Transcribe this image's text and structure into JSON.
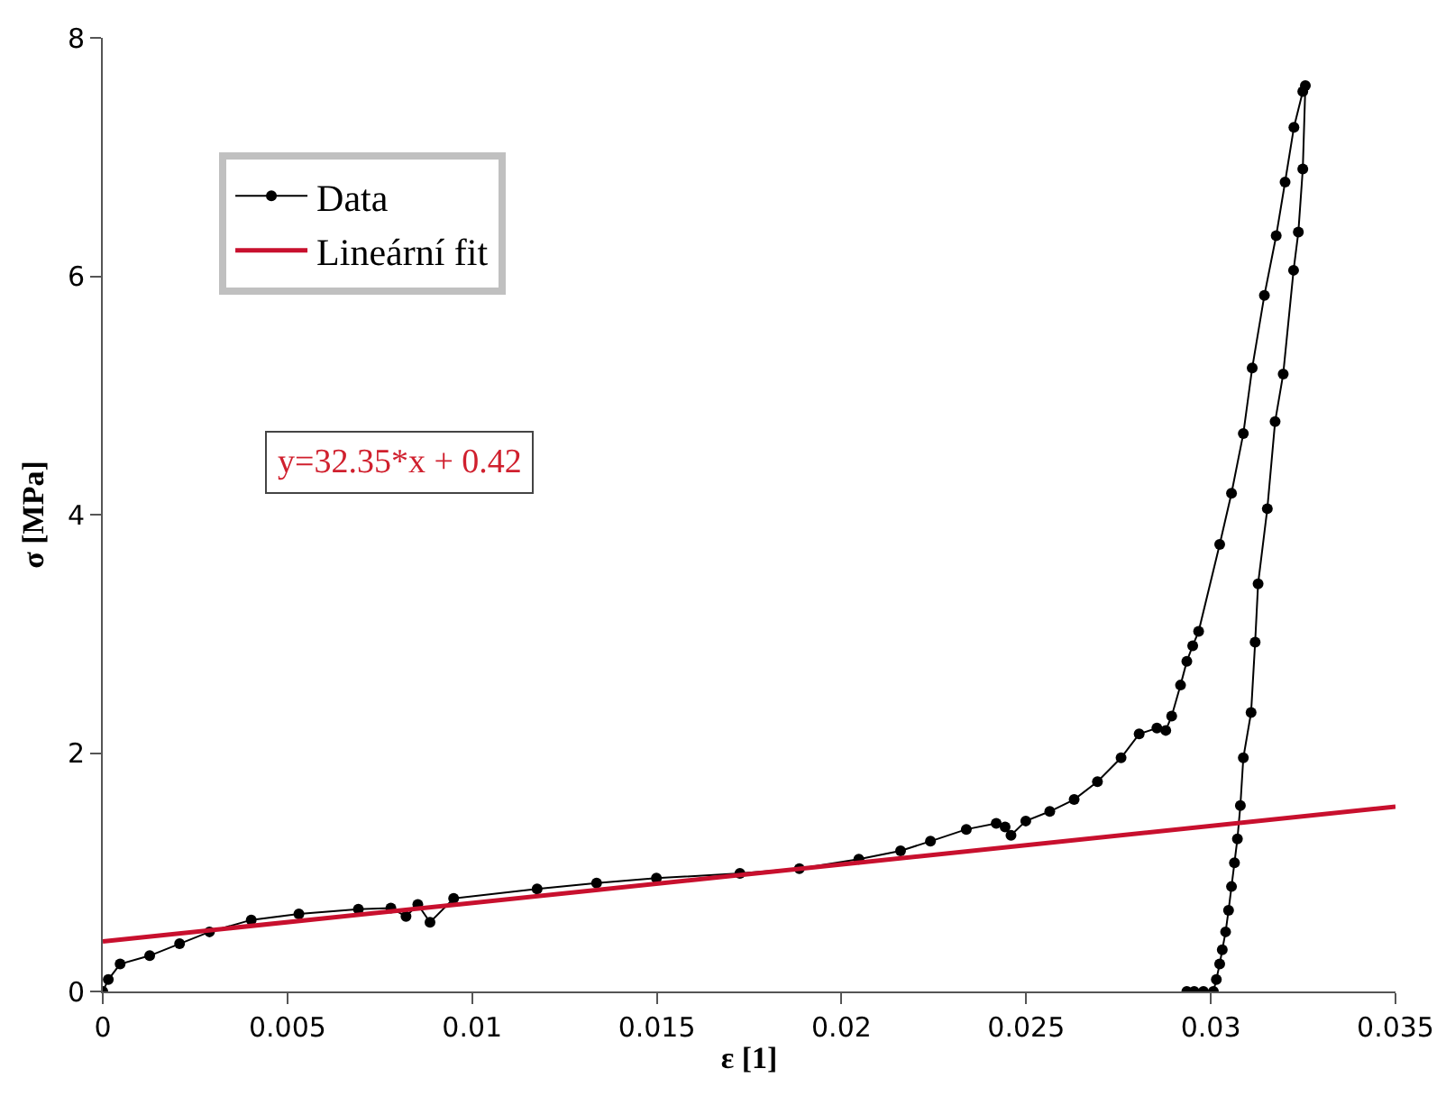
{
  "chart_data": {
    "type": "line",
    "xlabel": "ε [1]",
    "ylabel": "σ [MPa]",
    "xlim": [
      0,
      0.035
    ],
    "xticks": [
      0,
      0.005,
      0.01,
      0.015,
      0.02,
      0.025,
      0.03,
      0.035
    ],
    "ylim": [
      0,
      8
    ],
    "yticks": [
      0,
      2,
      4,
      6,
      8
    ],
    "legend": "top left",
    "annotations": [
      "y=32.35*x + 0.42"
    ],
    "series": [
      {
        "name": "Data",
        "color": "#000000",
        "marker": "circle",
        "x": [
          0,
          0.00015,
          0.00047,
          0.00127,
          0.00208,
          0.00289,
          0.00402,
          0.00531,
          0.00692,
          0.0078,
          0.00821,
          0.00853,
          0.00886,
          0.0095,
          0.01176,
          0.01337,
          0.01499,
          0.01725,
          0.01886,
          0.02047,
          0.0216,
          0.02241,
          0.02338,
          0.02419,
          0.02443,
          0.02459,
          0.02499,
          0.02564,
          0.0263,
          0.02693,
          0.02757,
          0.02806,
          0.02854,
          0.02878,
          0.02894,
          0.02918,
          0.02935,
          0.02951,
          0.02967,
          0.03024,
          0.03056,
          0.03088,
          0.03112,
          0.03145,
          0.03177,
          0.03201,
          0.03225,
          0.03249,
          0.03256,
          0.03249,
          0.03237,
          0.03224,
          0.03196,
          0.03174,
          0.03153,
          0.03128,
          0.0312,
          0.03109,
          0.03088,
          0.0308,
          0.03072,
          0.03064,
          0.03056,
          0.03048,
          0.0304,
          0.03031,
          0.03024,
          0.03015,
          0.03007,
          0.0298,
          0.02955,
          0.02935
        ],
        "values": [
          0,
          0.1,
          0.23,
          0.3,
          0.4,
          0.5,
          0.6,
          0.65,
          0.69,
          0.7,
          0.63,
          0.73,
          0.58,
          0.78,
          0.86,
          0.91,
          0.95,
          0.99,
          1.03,
          1.11,
          1.18,
          1.26,
          1.36,
          1.41,
          1.38,
          1.31,
          1.43,
          1.51,
          1.61,
          1.76,
          1.96,
          2.16,
          2.21,
          2.19,
          2.31,
          2.57,
          2.77,
          2.9,
          3.02,
          3.75,
          4.18,
          4.68,
          5.23,
          5.84,
          6.34,
          6.79,
          7.25,
          7.55,
          7.6,
          6.9,
          6.37,
          6.05,
          5.18,
          4.78,
          4.05,
          3.42,
          2.93,
          2.34,
          1.96,
          1.56,
          1.28,
          1.08,
          0.88,
          0.68,
          0.5,
          0.35,
          0.23,
          0.1,
          0,
          0,
          0,
          0
        ]
      },
      {
        "name": "Lineární fit",
        "color": "#c8102e",
        "marker": "none",
        "x": [
          0,
          0.035
        ],
        "values": [
          0.42,
          1.55
        ]
      }
    ]
  }
}
